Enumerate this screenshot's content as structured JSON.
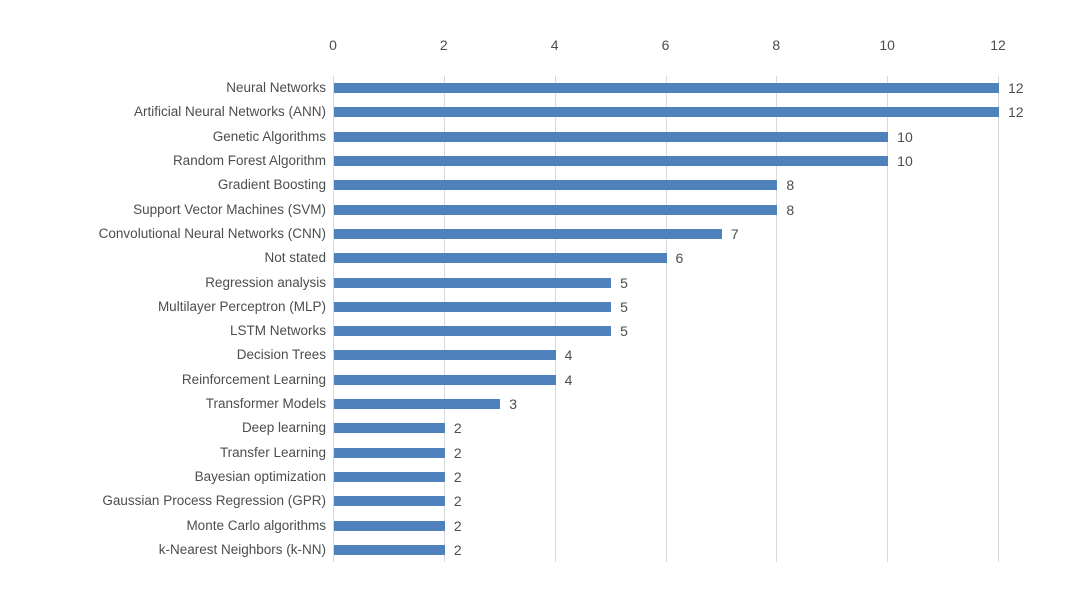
{
  "chart_data": {
    "type": "bar",
    "orientation": "horizontal",
    "title": "",
    "xlabel": "",
    "ylabel": "",
    "categories": [
      "Neural Networks",
      "Artificial Neural Networks (ANN)",
      "Genetic Algorithms",
      "Random Forest Algorithm",
      "Gradient Boosting",
      "Support Vector Machines (SVM)",
      "Convolutional Neural Networks (CNN)",
      "Not stated",
      "Regression analysis",
      "Multilayer Perceptron (MLP)",
      "LSTM Networks",
      "Decision Trees",
      "Reinforcement Learning",
      "Transformer Models",
      "Deep learning",
      "Transfer Learning",
      "Bayesian optimization",
      "Gaussian Process Regression (GPR)",
      "Monte Carlo algorithms",
      "k-Nearest Neighbors (k-NN)"
    ],
    "values": [
      12,
      12,
      10,
      10,
      8,
      8,
      7,
      6,
      5,
      5,
      5,
      4,
      4,
      3,
      2,
      2,
      2,
      2,
      2,
      2
    ],
    "x_ticks": [
      0,
      2,
      4,
      6,
      8,
      10,
      12
    ],
    "xlim": [
      0,
      12
    ],
    "axis_position": "top",
    "grid": true,
    "legend": "none",
    "data_labels": true,
    "colors": {
      "bar": "#4f81bd",
      "gridline": "#d9d9d9",
      "text": "#4d4d4d"
    }
  }
}
